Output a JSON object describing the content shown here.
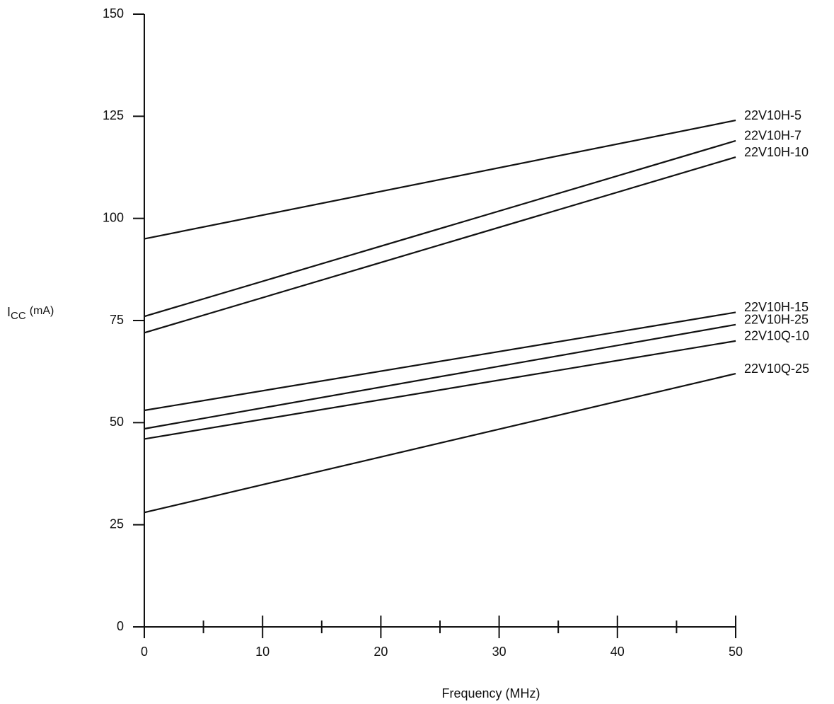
{
  "chart_data": {
    "type": "line",
    "x_label": "Frequency (MHz)",
    "y_label": [
      "I",
      "CC",
      "(mA)"
    ],
    "x": [
      0,
      50
    ],
    "series": [
      {
        "name": "22V10H-5",
        "color": "#111111",
        "values": [
          95,
          124
        ]
      },
      {
        "name": "22V10H-7",
        "color": "#111111",
        "values": [
          76,
          119
        ]
      },
      {
        "name": "22V10H-10",
        "color": "#111111",
        "values": [
          72,
          115
        ]
      },
      {
        "name": "22V10H-15",
        "color": "#111111",
        "values": [
          53,
          77
        ]
      },
      {
        "name": "22V10H-25",
        "color": "#111111",
        "values": [
          48.5,
          74
        ]
      },
      {
        "name": "22V10Q-10",
        "color": "#111111",
        "values": [
          46,
          70
        ]
      },
      {
        "name": "22V10Q-25",
        "color": "#111111",
        "values": [
          28,
          62
        ]
      }
    ],
    "xlim": [
      0,
      50
    ],
    "xticks": [
      0,
      10,
      20,
      30,
      40,
      50
    ],
    "xminor_ticks": [
      5,
      15,
      25,
      35,
      45
    ],
    "ylim": [
      0,
      150
    ],
    "yticks": [
      0,
      25,
      50,
      75,
      100,
      125,
      150
    ],
    "grid": false
  }
}
